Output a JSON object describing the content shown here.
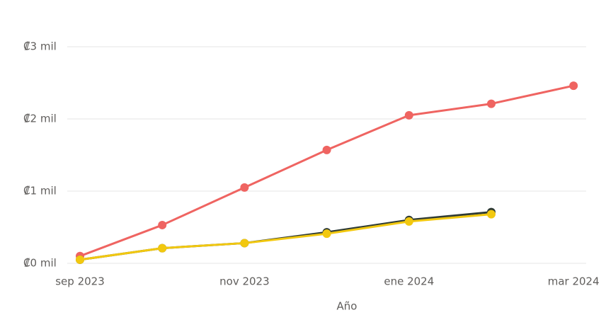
{
  "chart_data": {
    "type": "line",
    "x_label": "Año",
    "categories": [
      "sep 2023",
      null,
      "nov 2023",
      null,
      "ene 2024",
      null,
      "mar 2024"
    ],
    "series": [
      {
        "color": "#ef6461",
        "values": [
          0.1,
          0.53,
          1.05,
          1.57,
          2.05,
          2.21,
          2.46
        ]
      },
      {
        "color": "#2f3b35",
        "values": [
          0.05,
          0.21,
          0.28,
          0.43,
          0.6,
          0.71,
          null
        ]
      },
      {
        "color": "#f2c80f",
        "values": [
          0.05,
          0.21,
          0.28,
          0.41,
          0.58,
          0.68,
          null
        ]
      }
    ],
    "ylim": [
      0,
      3
    ],
    "yticks": [
      {
        "value": 0,
        "label": "₡0 mil"
      },
      {
        "value": 1,
        "label": "₡1 mil"
      },
      {
        "value": 2,
        "label": "₡2 mil"
      },
      {
        "value": 3,
        "label": "₡3 mil"
      }
    ],
    "grid": true
  }
}
